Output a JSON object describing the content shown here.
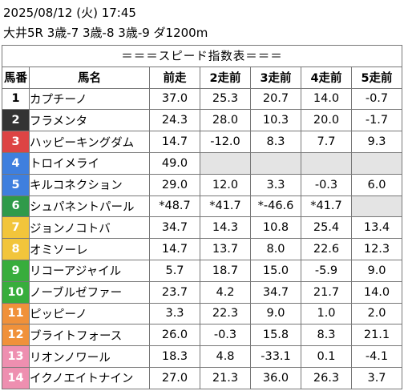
{
  "header": {
    "line1": "2025/08/12 (火) 17:45",
    "line2": "大井5R 3歳-7 3歳-8 3歳-9 ダ1200m"
  },
  "table": {
    "title": "＝＝＝スピード指数表＝＝＝",
    "columns": [
      "馬番",
      "馬名",
      "前走",
      "2走前",
      "3走前",
      "4走前",
      "5走前"
    ],
    "rows": [
      {
        "num": "1",
        "name": "カプチーノ",
        "v": [
          "37.0",
          "25.3",
          "20.7",
          "14.0",
          "-0.7"
        ],
        "bg": "#ffffff",
        "fg": "#000000"
      },
      {
        "num": "2",
        "name": "フラメンタ",
        "v": [
          "24.3",
          "28.0",
          "10.3",
          "20.0",
          "-1.7"
        ],
        "bg": "#333333",
        "fg": "#ffffff"
      },
      {
        "num": "3",
        "name": "ハッピーキングダム",
        "v": [
          "14.7",
          "-12.0",
          "8.3",
          "7.7",
          "9.3"
        ],
        "bg": "#dd4444",
        "fg": "#ffffff"
      },
      {
        "num": "4",
        "name": "トロイメライ",
        "v": [
          "49.0",
          "",
          "",
          "",
          ""
        ],
        "bg": "#3f7fde",
        "fg": "#ffffff"
      },
      {
        "num": "5",
        "name": "キルコネクション",
        "v": [
          "29.0",
          "12.0",
          "3.3",
          "-0.3",
          "6.0"
        ],
        "bg": "#3f7fde",
        "fg": "#ffffff"
      },
      {
        "num": "6",
        "name": "シュパネントパール",
        "v": [
          "*48.7",
          "*41.7",
          "*-46.6",
          "*41.7",
          ""
        ],
        "bg": "#2f9a4a",
        "fg": "#ffffff"
      },
      {
        "num": "7",
        "name": "ジョンノコトバ",
        "v": [
          "34.7",
          "14.3",
          "10.8",
          "25.4",
          "13.4"
        ],
        "bg": "#f2c53b",
        "fg": "#ffffff"
      },
      {
        "num": "8",
        "name": "オミソーレ",
        "v": [
          "14.7",
          "13.7",
          "8.0",
          "22.6",
          "12.3"
        ],
        "bg": "#f2c53b",
        "fg": "#ffffff"
      },
      {
        "num": "9",
        "name": "リコーアジャイル",
        "v": [
          "5.7",
          "18.7",
          "15.0",
          "-5.9",
          "9.0"
        ],
        "bg": "#38ad3c",
        "fg": "#ffffff"
      },
      {
        "num": "10",
        "name": "ノーブルゼファー",
        "v": [
          "23.7",
          "4.2",
          "34.7",
          "21.7",
          "14.0"
        ],
        "bg": "#38ad3c",
        "fg": "#ffffff"
      },
      {
        "num": "11",
        "name": "ピッピーノ",
        "v": [
          "3.3",
          "22.3",
          "9.0",
          "1.0",
          "2.0"
        ],
        "bg": "#f0913a",
        "fg": "#ffffff"
      },
      {
        "num": "12",
        "name": "ブライトフォース",
        "v": [
          "26.0",
          "-0.3",
          "15.8",
          "8.3",
          "21.1"
        ],
        "bg": "#f0913a",
        "fg": "#ffffff"
      },
      {
        "num": "13",
        "name": "リオンノワール",
        "v": [
          "18.3",
          "4.8",
          "-33.1",
          "0.1",
          "-4.1"
        ],
        "bg": "#ee8fb0",
        "fg": "#ffffff"
      },
      {
        "num": "14",
        "name": "イクノエイトナイン",
        "v": [
          "27.0",
          "21.3",
          "36.0",
          "26.3",
          "3.7"
        ],
        "bg": "#ee8fb0",
        "fg": "#ffffff"
      }
    ]
  }
}
